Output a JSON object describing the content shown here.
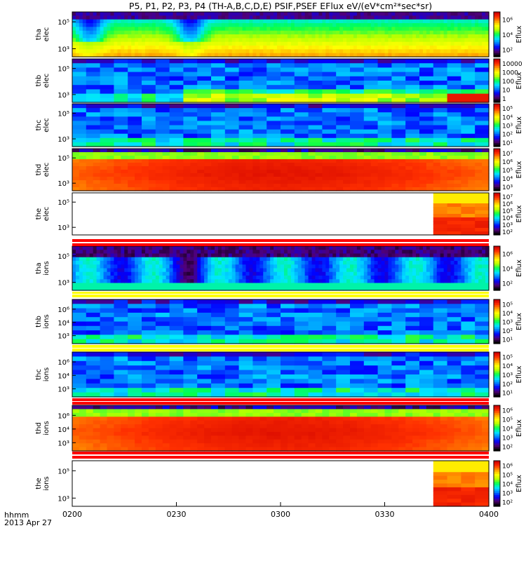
{
  "title": "P5, P1, P2, P3, P4  (TH-A,B,C,D,E) PSIF,PSEF EFlux eV/(eV*cm²*sec*sr)",
  "time_axis": {
    "label_line1": "hhmm",
    "label_line2": "2013 Apr 27",
    "ticks": [
      "0200",
      "0230",
      "0300",
      "0330",
      "0400"
    ],
    "range": [
      "02:00",
      "04:00"
    ]
  },
  "colorbar_label": "Eflux",
  "colors": {
    "spectral_scale": [
      "#000000",
      "#50007a",
      "#0000ff",
      "#0080ff",
      "#00e6ff",
      "#00ff50",
      "#b4ff00",
      "#ffff00",
      "#ffa000",
      "#ff3000",
      "#d00000"
    ],
    "flag_red": "#ff0000",
    "flag_yellow": "#ffff00"
  },
  "chart_data": [
    {
      "type": "heatmap",
      "panel": "thaelec",
      "ylabel": [
        "tha",
        "elec"
      ],
      "scale": "log",
      "yticks": [
        "10⁵",
        "10³"
      ],
      "colorbar_ticks": [
        "10⁶",
        "10⁴",
        "10²"
      ],
      "pattern": "smooth",
      "dips_at": [
        "02:05",
        "02:34"
      ]
    },
    {
      "type": "heatmap",
      "panel": "thbelec",
      "ylabel": [
        "thb",
        "elec"
      ],
      "scale": "log",
      "yticks": [
        "10⁵",
        "10³"
      ],
      "colorbar_ticks": [
        "10000",
        "1000",
        "100",
        "10",
        "1"
      ],
      "pattern": "blocky"
    },
    {
      "type": "heatmap",
      "panel": "thcelec",
      "ylabel": [
        "thc",
        "elec"
      ],
      "scale": "log",
      "yticks": [
        "10⁵",
        "10³"
      ],
      "colorbar_ticks": [
        "10⁵",
        "10⁴",
        "10³",
        "10²",
        "10¹"
      ],
      "pattern": "blocky"
    },
    {
      "type": "heatmap",
      "panel": "thdelec",
      "ylabel": [
        "thd",
        "elec"
      ],
      "scale": "log",
      "yticks": [
        "10⁵",
        "10³"
      ],
      "colorbar_ticks": [
        "10⁷",
        "10⁶",
        "10⁵",
        "10⁴",
        "10³"
      ],
      "pattern": "hot"
    },
    {
      "type": "heatmap",
      "panel": "theelec",
      "ylabel": [
        "the",
        "elec"
      ],
      "scale": "log",
      "yticks": [
        "10⁵",
        "10³"
      ],
      "colorbar_ticks": [
        "10⁷",
        "10⁶",
        "10⁵",
        "10⁴",
        "10³",
        "10²"
      ],
      "pattern": "late",
      "data_start": "03:46"
    },
    {
      "type": "heatmap",
      "panel": "thaions",
      "ylabel": [
        "tha",
        "ions"
      ],
      "scale": "log",
      "yticks": [
        "10⁵",
        "10³"
      ],
      "colorbar_ticks": [
        "10⁶",
        "10⁴",
        "10²"
      ],
      "pattern": "ions",
      "dips_at": [
        "02:34"
      ]
    },
    {
      "type": "heatmap",
      "panel": "thbions",
      "ylabel": [
        "thb",
        "ions"
      ],
      "scale": "log",
      "yticks": [
        "10⁶",
        "10⁴",
        "10³"
      ],
      "colorbar_ticks": [
        "10⁵",
        "10⁴",
        "10³",
        "10²",
        "10¹"
      ],
      "pattern": "blocky"
    },
    {
      "type": "heatmap",
      "panel": "thcions",
      "ylabel": [
        "thc",
        "ions"
      ],
      "scale": "log",
      "yticks": [
        "10⁶",
        "10⁴",
        "10³"
      ],
      "colorbar_ticks": [
        "10⁵",
        "10⁴",
        "10³",
        "10²",
        "10¹"
      ],
      "pattern": "blocky"
    },
    {
      "type": "heatmap",
      "panel": "thdions",
      "ylabel": [
        "thd",
        "ions"
      ],
      "scale": "log",
      "yticks": [
        "10⁶",
        "10⁴",
        "10³"
      ],
      "colorbar_ticks": [
        "10⁶",
        "10⁵",
        "10⁴",
        "10³",
        "10²"
      ],
      "pattern": "hot"
    },
    {
      "type": "heatmap",
      "panel": "theions",
      "ylabel": [
        "the",
        "ions"
      ],
      "scale": "log",
      "yticks": [
        "10⁵",
        "10³"
      ],
      "colorbar_ticks": [
        "10⁶",
        "10⁵",
        "10⁴",
        "10³",
        "10²"
      ],
      "pattern": "late",
      "data_start": "03:46"
    }
  ]
}
